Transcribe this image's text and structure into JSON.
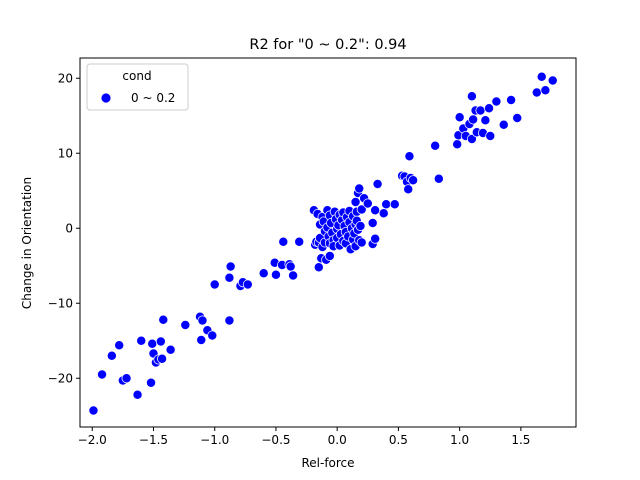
{
  "chart_data": {
    "type": "scatter",
    "title": "R2 for \"0 ~ 0.2\": 0.94",
    "xlabel": "Rel-force",
    "ylabel": "Change in Orientation",
    "xlim": [
      -2.1,
      1.95
    ],
    "ylim": [
      -26.5,
      22.7
    ],
    "xticks": [
      -2.0,
      -1.5,
      -1.0,
      -0.5,
      0.0,
      0.5,
      1.0,
      1.5
    ],
    "xtick_labels": [
      "−2.0",
      "−1.5",
      "−1.0",
      "−0.5",
      "0.0",
      "0.5",
      "1.0",
      "1.5"
    ],
    "yticks": [
      -20,
      -10,
      0,
      10,
      20
    ],
    "ytick_labels": [
      "−20",
      "−10",
      "0",
      "10",
      "20"
    ],
    "grid": false,
    "legend": {
      "title": "cond",
      "placement": "top-left",
      "entries": [
        "0 ~ 0.2"
      ]
    },
    "series": [
      {
        "name": "0 ~ 0.2",
        "color": "#0000ff",
        "points": [
          [
            -1.99,
            -24.3
          ],
          [
            -1.92,
            -19.5
          ],
          [
            -1.84,
            -17.0
          ],
          [
            -1.78,
            -15.6
          ],
          [
            -1.75,
            -20.3
          ],
          [
            -1.72,
            -20.0
          ],
          [
            -1.63,
            -22.2
          ],
          [
            -1.6,
            -15.0
          ],
          [
            -1.52,
            -20.6
          ],
          [
            -1.51,
            -15.4
          ],
          [
            -1.5,
            -16.7
          ],
          [
            -1.48,
            -17.9
          ],
          [
            -1.46,
            -17.5
          ],
          [
            -1.44,
            -15.1
          ],
          [
            -1.43,
            -17.4
          ],
          [
            -1.42,
            -12.2
          ],
          [
            -1.36,
            -16.2
          ],
          [
            -1.24,
            -12.9
          ],
          [
            -1.12,
            -11.8
          ],
          [
            -1.11,
            -14.9
          ],
          [
            -1.1,
            -12.3
          ],
          [
            -1.06,
            -13.6
          ],
          [
            -1.02,
            -14.3
          ],
          [
            -1.0,
            -7.5
          ],
          [
            -0.88,
            -12.3
          ],
          [
            -0.88,
            -6.6
          ],
          [
            -0.87,
            -5.1
          ],
          [
            -0.79,
            -7.7
          ],
          [
            -0.77,
            -7.2
          ],
          [
            -0.73,
            -7.5
          ],
          [
            -0.6,
            -6.0
          ],
          [
            -0.51,
            -4.6
          ],
          [
            -0.5,
            -6.2
          ],
          [
            -0.45,
            -4.9
          ],
          [
            -0.44,
            -1.8
          ],
          [
            -0.39,
            -4.8
          ],
          [
            -0.38,
            -5.1
          ],
          [
            -0.36,
            -6.3
          ],
          [
            -0.31,
            -1.8
          ],
          [
            -0.19,
            2.4
          ],
          [
            -0.18,
            -2.2
          ],
          [
            -0.17,
            -1.8
          ],
          [
            -0.16,
            1.9
          ],
          [
            -0.15,
            -1.9
          ],
          [
            -0.15,
            -5.2
          ],
          [
            -0.14,
            0.5
          ],
          [
            -0.14,
            -1.3
          ],
          [
            -0.13,
            -4.0
          ],
          [
            -0.12,
            1.5
          ],
          [
            -0.12,
            -2.5
          ],
          [
            -0.11,
            0.9
          ],
          [
            -0.1,
            -0.4
          ],
          [
            -0.1,
            -1.9
          ],
          [
            -0.09,
            -4.2
          ],
          [
            -0.08,
            2.4
          ],
          [
            -0.08,
            0.1
          ],
          [
            -0.07,
            -1.1
          ],
          [
            -0.06,
            1.7
          ],
          [
            -0.06,
            -2.0
          ],
          [
            -0.06,
            -3.7
          ],
          [
            -0.05,
            0.7
          ],
          [
            -0.04,
            -0.6
          ],
          [
            -0.03,
            -1.6
          ],
          [
            -0.03,
            -2.4
          ],
          [
            -0.02,
            2.2
          ],
          [
            -0.01,
            1.2
          ],
          [
            0.0,
            -0.1
          ],
          [
            0.0,
            -1.3
          ],
          [
            0.01,
            0.4
          ],
          [
            0.02,
            1.8
          ],
          [
            0.02,
            -2.3
          ],
          [
            0.03,
            -0.8
          ],
          [
            0.04,
            1.1
          ],
          [
            0.05,
            -1.7
          ],
          [
            0.05,
            2.1
          ],
          [
            0.06,
            0.3
          ],
          [
            0.07,
            -0.5
          ],
          [
            0.07,
            -2.0
          ],
          [
            0.08,
            1.5
          ],
          [
            0.09,
            -1.1
          ],
          [
            0.1,
            0.8
          ],
          [
            0.1,
            2.3
          ],
          [
            0.11,
            -2.8
          ],
          [
            0.12,
            0.0
          ],
          [
            0.13,
            1.6
          ],
          [
            0.13,
            -1.5
          ],
          [
            0.14,
            -0.7
          ],
          [
            0.15,
            0.5
          ],
          [
            0.15,
            3.5
          ],
          [
            0.15,
            -2.4
          ],
          [
            0.16,
            2.2
          ],
          [
            0.16,
            1.0
          ],
          [
            0.17,
            -0.2
          ],
          [
            0.17,
            4.7
          ],
          [
            0.18,
            -1.6
          ],
          [
            0.18,
            5.3
          ],
          [
            0.19,
            0.3
          ],
          [
            0.2,
            -1.9
          ],
          [
            0.2,
            2.5
          ],
          [
            0.22,
            4.0
          ],
          [
            0.25,
            3.3
          ],
          [
            0.29,
            -2.1
          ],
          [
            0.29,
            0.7
          ],
          [
            0.31,
            -1.4
          ],
          [
            0.31,
            2.4
          ],
          [
            0.33,
            5.9
          ],
          [
            0.38,
            2.0
          ],
          [
            0.4,
            3.2
          ],
          [
            0.47,
            3.2
          ],
          [
            0.53,
            7.0
          ],
          [
            0.55,
            6.9
          ],
          [
            0.57,
            6.2
          ],
          [
            0.58,
            5.2
          ],
          [
            0.59,
            9.6
          ],
          [
            0.6,
            6.7
          ],
          [
            0.62,
            6.4
          ],
          [
            0.8,
            11.0
          ],
          [
            0.83,
            6.6
          ],
          [
            0.98,
            11.2
          ],
          [
            0.99,
            12.4
          ],
          [
            1.0,
            14.8
          ],
          [
            1.03,
            13.3
          ],
          [
            1.05,
            12.3
          ],
          [
            1.08,
            13.9
          ],
          [
            1.1,
            17.6
          ],
          [
            1.1,
            11.9
          ],
          [
            1.11,
            14.5
          ],
          [
            1.13,
            15.7
          ],
          [
            1.14,
            12.8
          ],
          [
            1.17,
            15.7
          ],
          [
            1.19,
            12.7
          ],
          [
            1.21,
            14.4
          ],
          [
            1.24,
            16.0
          ],
          [
            1.25,
            12.3
          ],
          [
            1.3,
            16.9
          ],
          [
            1.36,
            13.8
          ],
          [
            1.42,
            17.1
          ],
          [
            1.47,
            14.7
          ],
          [
            1.63,
            18.1
          ],
          [
            1.67,
            20.2
          ],
          [
            1.7,
            18.4
          ],
          [
            1.76,
            19.7
          ]
        ]
      }
    ]
  }
}
